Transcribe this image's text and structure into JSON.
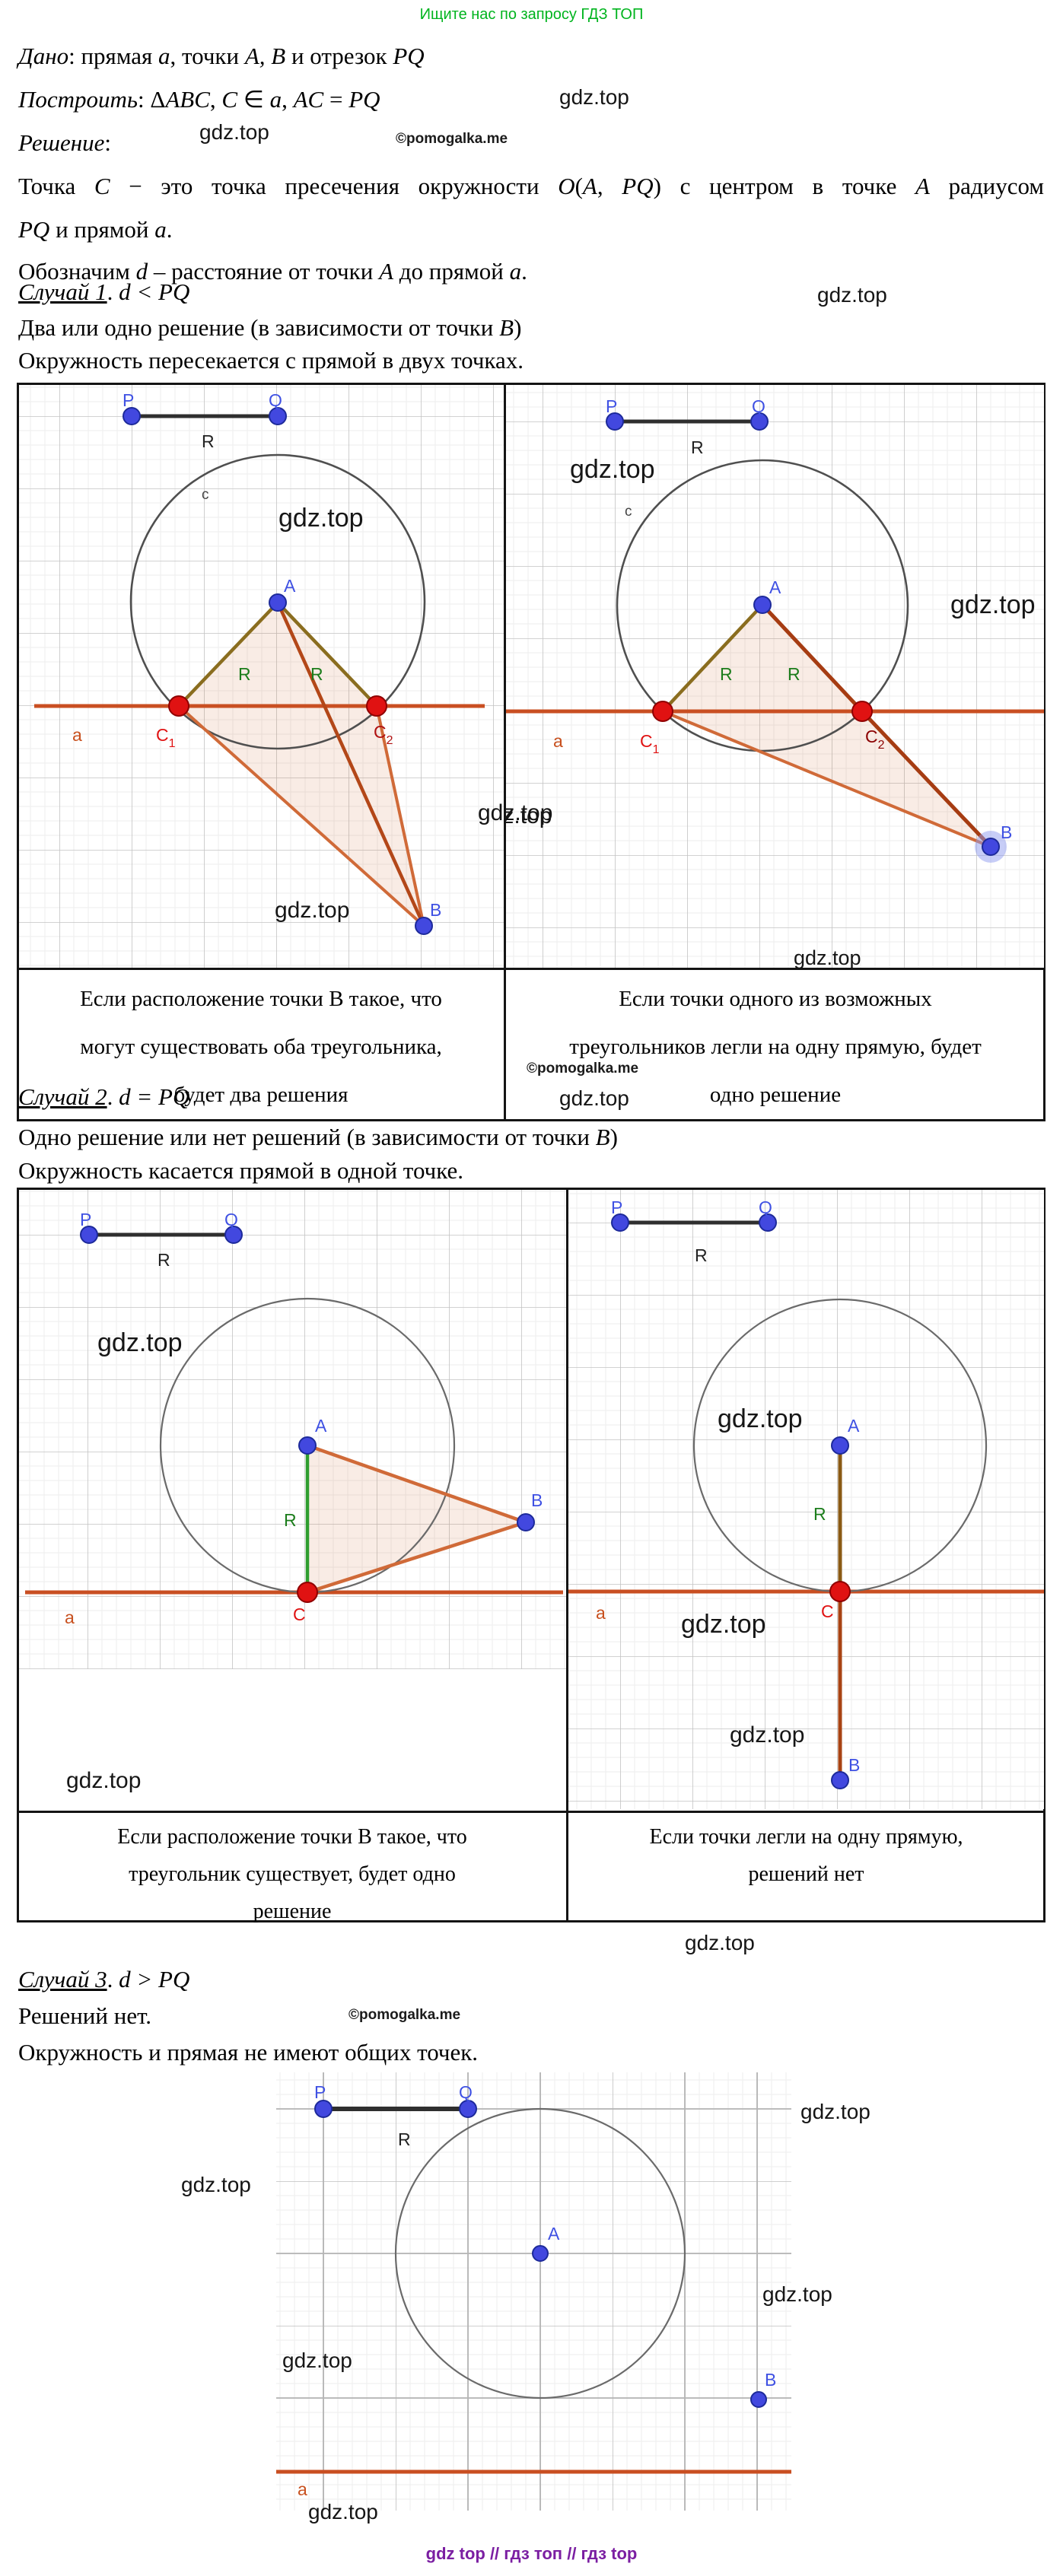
{
  "header": {
    "promo": "Ищите нас по запросу ГДЗ ТОП"
  },
  "watermark": {
    "gdz": "gdz.top",
    "pomogalka": "©pomogalka.me"
  },
  "footer": {
    "text": "gdz top  //  гдз топ  //  гдз top"
  },
  "intro": {
    "dano": [
      {
        "t": "Дано",
        "s": "i"
      },
      {
        "t": ": прямая ",
        "s": "n"
      },
      {
        "t": "a",
        "s": "i"
      },
      {
        "t": ", точки ",
        "s": "n"
      },
      {
        "t": "A, B",
        "s": "i"
      },
      {
        "t": " и отрезок ",
        "s": "n"
      },
      {
        "t": "PQ",
        "s": "i"
      }
    ],
    "postroit": [
      {
        "t": "Построить",
        "s": "i"
      },
      {
        "t": ": Δ",
        "s": "n"
      },
      {
        "t": "ABC",
        "s": "i"
      },
      {
        "t": ",  ",
        "s": "n"
      },
      {
        "t": "C",
        "s": "i"
      },
      {
        "t": " ∈ ",
        "s": "n"
      },
      {
        "t": "a",
        "s": "i"
      },
      {
        "t": ",  ",
        "s": "n"
      },
      {
        "t": "AC",
        "s": "i"
      },
      {
        "t": " = ",
        "s": "n"
      },
      {
        "t": "PQ",
        "s": "i"
      }
    ],
    "reshenie": [
      {
        "t": "Решение",
        "s": "i"
      },
      {
        "t": ":",
        "s": "n"
      }
    ],
    "p1": [
      {
        "t": "Точка ",
        "s": "n"
      },
      {
        "t": "C",
        "s": "i"
      },
      {
        "t": " − это точка пресечения окружности ",
        "s": "n"
      },
      {
        "t": "O",
        "s": "i"
      },
      {
        "t": "(",
        "s": "n"
      },
      {
        "t": "A",
        "s": "i"
      },
      {
        "t": ", ",
        "s": "n"
      },
      {
        "t": "PQ",
        "s": "i"
      },
      {
        "t": ") с центром в точке ",
        "s": "n"
      },
      {
        "t": "A",
        "s": "i"
      },
      {
        "t": " радиусом",
        "s": "n"
      }
    ],
    "p2": [
      {
        "t": "PQ",
        "s": "i"
      },
      {
        "t": " и прямой ",
        "s": "n"
      },
      {
        "t": "a",
        "s": "i"
      },
      {
        "t": ".",
        "s": "n"
      }
    ],
    "p3": [
      {
        "t": "Обозначим ",
        "s": "n"
      },
      {
        "t": "d",
        "s": "i"
      },
      {
        "t": " – расстояние от точки ",
        "s": "n"
      },
      {
        "t": "A",
        "s": "i"
      },
      {
        "t": " до прямой ",
        "s": "n"
      },
      {
        "t": "a",
        "s": "i"
      },
      {
        "t": ".",
        "s": "n"
      }
    ]
  },
  "case1": {
    "title": [
      {
        "t": "Случай 1",
        "s": "u"
      },
      {
        "t": ". ",
        "s": "n"
      },
      {
        "t": "d < PQ",
        "s": "i"
      }
    ],
    "line1": [
      {
        "t": "Два или одно решение (в зависимости от точки ",
        "s": "n"
      },
      {
        "t": "B",
        "s": "i"
      },
      {
        "t": ")",
        "s": "n"
      }
    ],
    "line2": "Окружность пересекается с прямой в двух точках.",
    "caption_left": [
      "Если расположение точки В такое, что",
      "могут существовать оба треугольника,",
      "будет два решения"
    ],
    "caption_right": [
      "Если точки одного из возможных",
      "треугольников легли на одну прямую, будет",
      "одно решение"
    ]
  },
  "case2": {
    "title": [
      {
        "t": "Случай 2",
        "s": "u"
      },
      {
        "t": ". ",
        "s": "n"
      },
      {
        "t": "d = PQ",
        "s": "i"
      }
    ],
    "line1": [
      {
        "t": "Одно решение или нет решений (в зависимости от точки ",
        "s": "n"
      },
      {
        "t": "B",
        "s": "i"
      },
      {
        "t": ")",
        "s": "n"
      }
    ],
    "line2": "Окружность касается прямой в одной точке.",
    "caption_left": [
      "Если расположение точки В такое, что",
      "треугольник существует, будет одно",
      "решение"
    ],
    "caption_right": [
      "Если точки легли на одну прямую,",
      "решений нет"
    ]
  },
  "case3": {
    "title": [
      {
        "t": "Случай 3",
        "s": "u"
      },
      {
        "t": ". ",
        "s": "n"
      },
      {
        "t": "d > PQ",
        "s": "i"
      }
    ],
    "line1": "Решений нет.",
    "line2": "Окружность и прямая не имеют общих точек."
  },
  "labels": {
    "P": "P",
    "Q": "Q",
    "R": "R",
    "A": "A",
    "B": "B",
    "C": "C",
    "sub1": "1",
    "sub2": "2",
    "a": "a",
    "c": "c"
  },
  "colors": {
    "promo_green": "#00b41e",
    "footer_purple": "#7b1fa2",
    "line_a_orange": "#c94f22",
    "point_blue": "#4248df",
    "point_red": "#e01212",
    "radius_green": "#2f9e2f",
    "radius_olive": "#8a6d1f",
    "triangle_orange": "#d06a38",
    "dark_orange": "#a63c12"
  }
}
